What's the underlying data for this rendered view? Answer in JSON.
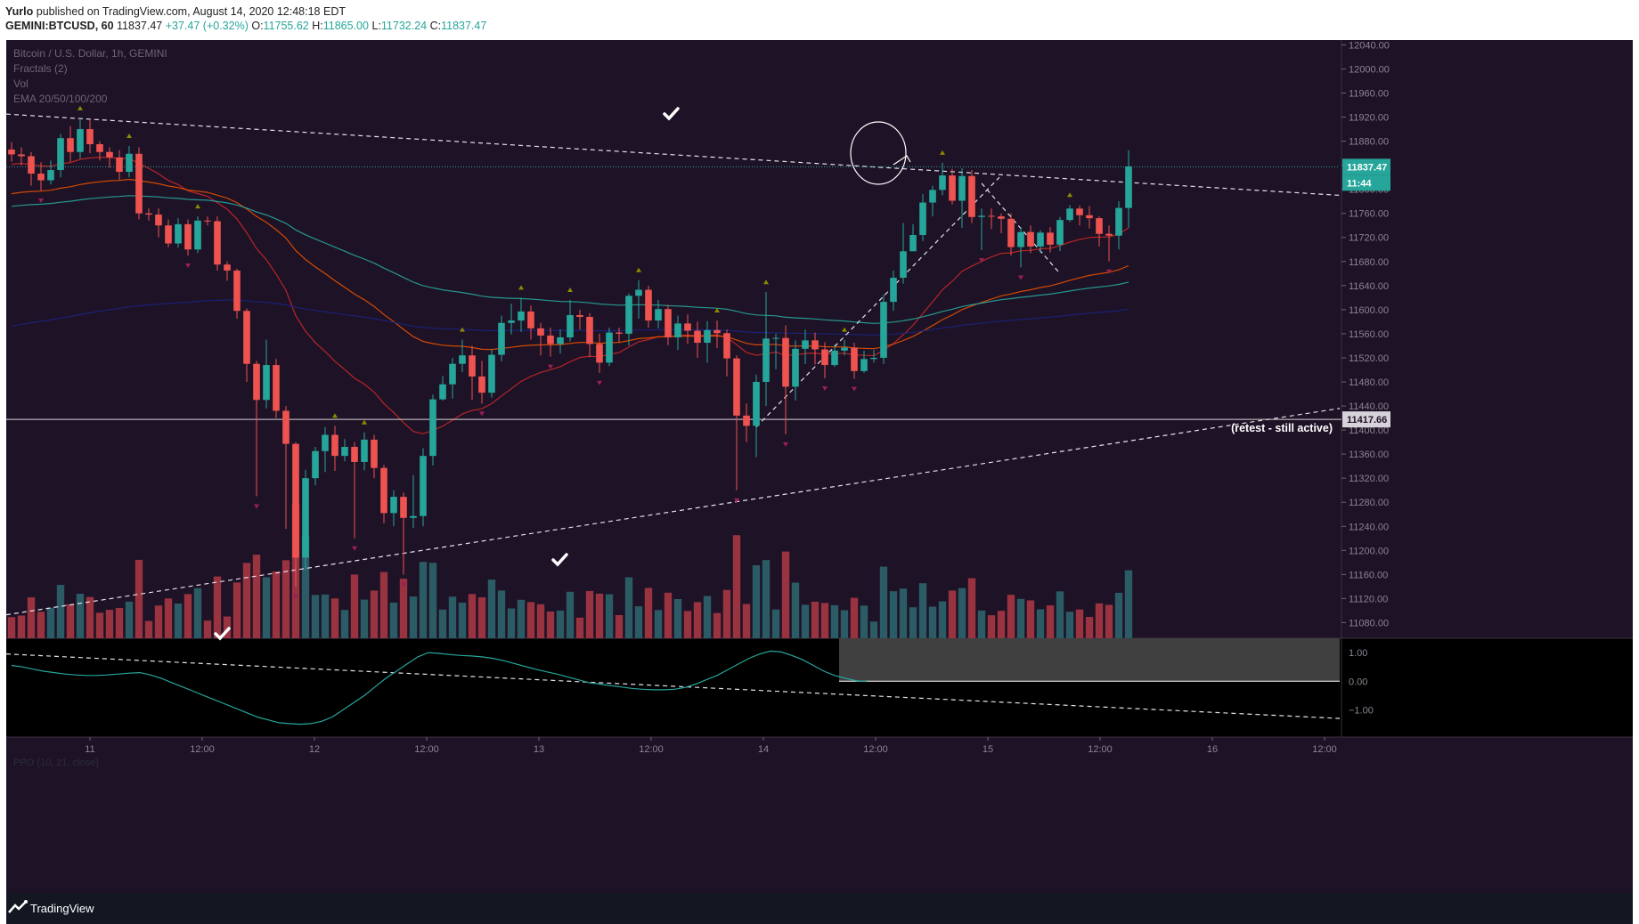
{
  "header": {
    "author": "Yurlo",
    "published_text": "published on TradingView.com, August 14, 2020 12:48:18 EDT",
    "symbol": "GEMINI:BTCUSD, 60",
    "last": "11837.47",
    "change": "+37.47 (+0.32%)",
    "o_label": "O:",
    "o_value": "11755.62",
    "h_label": "H:",
    "h_value": "11865.00",
    "l_label": "L:",
    "l_value": "11732.24",
    "c_label": "C:",
    "c_value": "11837.47"
  },
  "legend": {
    "title": "Bitcoin / U.S. Dollar, 1h, GEMINI",
    "fractals": "Fractals (2)",
    "vol": "Vol",
    "ema": "EMA 20/50/100/200"
  },
  "oscillator": {
    "label": "PPO (10, 21, close)"
  },
  "footer": {
    "brand": "TradingView"
  },
  "colors": {
    "background": "#1e1226",
    "up": "#26a69a",
    "down": "#ef5350",
    "ema20": "#c62828",
    "ema50": "#e65100",
    "ema100": "#26a69a",
    "ema200": "#1a237e",
    "ppo": "#26a69a"
  },
  "chart_data": {
    "type": "candlestick",
    "price_axis": {
      "ticks": [
        12040,
        12000,
        11960,
        11920,
        11880,
        11840,
        11800,
        11760,
        11720,
        11680,
        11640,
        11600,
        11560,
        11520,
        11480,
        11440,
        11400,
        11360,
        11320,
        11280,
        11240,
        11200,
        11160,
        11120,
        11080
      ],
      "tick_labels": [
        "12040.00",
        "12000.00",
        "11960.00",
        "11920.00",
        "11880.00",
        "11840.00",
        "11800.00",
        "11760.00",
        "11720.00",
        "11680.00",
        "11640.00",
        "11600.00",
        "11560.00",
        "11520.00",
        "11480.00",
        "11440.00",
        "11400.00",
        "11360.00",
        "11320.00",
        "11280.00",
        "11240.00",
        "11200.00",
        "11160.00",
        "11120.00",
        "11080.00"
      ],
      "last_price_label": "11837.47",
      "countdown_label": "11:44",
      "level_label": "11417.66",
      "ylim": [
        11054,
        12048
      ]
    },
    "oscillator_axis": {
      "tick_labels": [
        "1.00",
        "0.00",
        "−1.00"
      ]
    },
    "time_axis": [
      "11",
      "12:00",
      "12",
      "12:00",
      "13",
      "12:00",
      "14",
      "12:00",
      "15",
      "12:00",
      "16",
      "12:00"
    ],
    "annotations": {
      "retest": "(retest - still active)"
    },
    "candles": [
      [
        11866,
        11858,
        11878,
        11846
      ],
      [
        11858,
        11855,
        11870,
        11840
      ],
      [
        11855,
        11826,
        11862,
        11806
      ],
      [
        11826,
        11815,
        11845,
        11798
      ],
      [
        11815,
        11832,
        11848,
        11808
      ],
      [
        11832,
        11885,
        11892,
        11820
      ],
      [
        11885,
        11862,
        11905,
        11846
      ],
      [
        11862,
        11900,
        11918,
        11851
      ],
      [
        11900,
        11875,
        11915,
        11860
      ],
      [
        11875,
        11862,
        11880,
        11848
      ],
      [
        11862,
        11853,
        11870,
        11836
      ],
      [
        11853,
        11829,
        11865,
        11816
      ],
      [
        11829,
        11859,
        11872,
        11820
      ],
      [
        11859,
        11760,
        11870,
        11750
      ],
      [
        11760,
        11758,
        11768,
        11748
      ],
      [
        11758,
        11740,
        11768,
        11720
      ],
      [
        11740,
        11710,
        11750,
        11704
      ],
      [
        11710,
        11742,
        11752,
        11703
      ],
      [
        11742,
        11700,
        11750,
        11690
      ],
      [
        11700,
        11748,
        11755,
        11694
      ],
      [
        11748,
        11747,
        11755,
        11740
      ],
      [
        11747,
        11675,
        11755,
        11665
      ],
      [
        11675,
        11665,
        11680,
        11648
      ],
      [
        11665,
        11598,
        11668,
        11585
      ],
      [
        11598,
        11510,
        11602,
        11480
      ],
      [
        11510,
        11450,
        11515,
        11290
      ],
      [
        11450,
        11508,
        11550,
        11436
      ],
      [
        11508,
        11432,
        11518,
        11420
      ],
      [
        11432,
        11377,
        11440,
        11236
      ],
      [
        11377,
        11188,
        11380,
        11140
      ],
      [
        11188,
        11320,
        11334,
        11167
      ],
      [
        11320,
        11365,
        11372,
        11308
      ],
      [
        11365,
        11392,
        11405,
        11330
      ],
      [
        11392,
        11357,
        11407,
        11332
      ],
      [
        11357,
        11372,
        11385,
        11348
      ],
      [
        11372,
        11347,
        11380,
        11220
      ],
      [
        11347,
        11384,
        11396,
        11333
      ],
      [
        11384,
        11337,
        11392,
        11320
      ],
      [
        11337,
        11262,
        11342,
        11245
      ],
      [
        11262,
        11289,
        11300,
        11240
      ],
      [
        11289,
        11254,
        11296,
        11160
      ],
      [
        11254,
        11257,
        11325,
        11237
      ],
      [
        11257,
        11357,
        11370,
        11240
      ],
      [
        11357,
        11451,
        11459,
        11341
      ],
      [
        11451,
        11476,
        11490,
        11449
      ],
      [
        11476,
        11510,
        11520,
        11452
      ],
      [
        11510,
        11524,
        11550,
        11496
      ],
      [
        11524,
        11489,
        11540,
        11450
      ],
      [
        11489,
        11462,
        11515,
        11444
      ],
      [
        11462,
        11525,
        11535,
        11454
      ],
      [
        11525,
        11578,
        11590,
        11514
      ],
      [
        11578,
        11582,
        11610,
        11559
      ],
      [
        11582,
        11597,
        11620,
        11563
      ],
      [
        11597,
        11569,
        11607,
        11550
      ],
      [
        11569,
        11557,
        11578,
        11524
      ],
      [
        11557,
        11543,
        11570,
        11522
      ],
      [
        11543,
        11554,
        11567,
        11527
      ],
      [
        11554,
        11591,
        11616,
        11547
      ],
      [
        11591,
        11588,
        11600,
        11567
      ],
      [
        11588,
        11543,
        11594,
        11521
      ],
      [
        11543,
        11512,
        11560,
        11495
      ],
      [
        11512,
        11562,
        11570,
        11506
      ],
      [
        11562,
        11560,
        11570,
        11545
      ],
      [
        11560,
        11623,
        11627,
        11540
      ],
      [
        11623,
        11633,
        11649,
        11585
      ],
      [
        11633,
        11582,
        11640,
        11570
      ],
      [
        11582,
        11601,
        11616,
        11569
      ],
      [
        11601,
        11554,
        11608,
        11541
      ],
      [
        11554,
        11577,
        11590,
        11533
      ],
      [
        11577,
        11565,
        11592,
        11543
      ],
      [
        11565,
        11545,
        11580,
        11520
      ],
      [
        11545,
        11566,
        11581,
        11512
      ],
      [
        11566,
        11561,
        11582,
        11536
      ],
      [
        11561,
        11519,
        11567,
        11489
      ],
      [
        11519,
        11424,
        11524,
        11300
      ],
      [
        11424,
        11407,
        11444,
        11380
      ],
      [
        11407,
        11480,
        11492,
        11355
      ],
      [
        11480,
        11552,
        11629,
        11440
      ],
      [
        11552,
        11553,
        11560,
        11501
      ],
      [
        11553,
        11472,
        11574,
        11393
      ],
      [
        11472,
        11535,
        11549,
        11449
      ],
      [
        11535,
        11549,
        11567,
        11510
      ],
      [
        11549,
        11534,
        11562,
        11509
      ],
      [
        11534,
        11508,
        11546,
        11486
      ],
      [
        11508,
        11532,
        11542,
        11505
      ],
      [
        11532,
        11537,
        11550,
        11524
      ],
      [
        11537,
        11498,
        11545,
        11485
      ],
      [
        11498,
        11518,
        11532,
        11495
      ],
      [
        11518,
        11520,
        11533,
        11512
      ],
      [
        11520,
        11613,
        11625,
        11510
      ],
      [
        11613,
        11653,
        11665,
        11598
      ],
      [
        11653,
        11697,
        11744,
        11643
      ],
      [
        11697,
        11724,
        11742,
        11714
      ],
      [
        11724,
        11778,
        11792,
        11714
      ],
      [
        11778,
        11799,
        11806,
        11755
      ],
      [
        11799,
        11823,
        11844,
        11790
      ],
      [
        11823,
        11781,
        11834,
        11775
      ],
      [
        11781,
        11822,
        11835,
        11736
      ],
      [
        11822,
        11754,
        11832,
        11744
      ],
      [
        11754,
        11756,
        11768,
        11699
      ],
      [
        11756,
        11755,
        11768,
        11734
      ],
      [
        11755,
        11751,
        11760,
        11727
      ],
      [
        11751,
        11704,
        11760,
        11690
      ],
      [
        11704,
        11729,
        11737,
        11670
      ],
      [
        11729,
        11705,
        11740,
        11694
      ],
      [
        11705,
        11728,
        11732,
        11695
      ],
      [
        11728,
        11708,
        11737,
        11695
      ],
      [
        11708,
        11749,
        11754,
        11697
      ],
      [
        11749,
        11768,
        11774,
        11746
      ],
      [
        11768,
        11757,
        11773,
        11740
      ],
      [
        11757,
        11752,
        11772,
        11735
      ],
      [
        11752,
        11726,
        11755,
        11705
      ],
      [
        11726,
        11723,
        11740,
        11680
      ],
      [
        11723,
        11769,
        11780,
        11700
      ],
      [
        11769,
        11838,
        11865,
        11736
      ]
    ],
    "volume_series_name": "Vol",
    "ema_periods": [
      20,
      50,
      100,
      200
    ],
    "ppo": [
      0.55,
      0.5,
      0.42,
      0.35,
      0.3,
      0.25,
      0.22,
      0.2,
      0.2,
      0.22,
      0.25,
      0.28,
      0.3,
      0.22,
      0.1,
      -0.05,
      -0.2,
      -0.35,
      -0.5,
      -0.65,
      -0.8,
      -0.95,
      -1.1,
      -1.25,
      -1.35,
      -1.45,
      -1.48,
      -1.5,
      -1.48,
      -1.4,
      -1.25,
      -1.0,
      -0.75,
      -0.5,
      -0.2,
      0.1,
      0.35,
      0.6,
      0.85,
      1.0,
      0.97,
      0.93,
      0.9,
      0.88,
      0.85,
      0.8,
      0.72,
      0.62,
      0.52,
      0.42,
      0.33,
      0.25,
      0.15,
      0.05,
      -0.05,
      -0.1,
      -0.15,
      -0.2,
      -0.25,
      -0.28,
      -0.3,
      -0.3,
      -0.28,
      -0.22,
      -0.1,
      0.05,
      0.2,
      0.4,
      0.6,
      0.8,
      0.95,
      1.05,
      1.02,
      0.9,
      0.75,
      0.55,
      0.35,
      0.2,
      0.1,
      0.02,
      -0.01
    ]
  }
}
